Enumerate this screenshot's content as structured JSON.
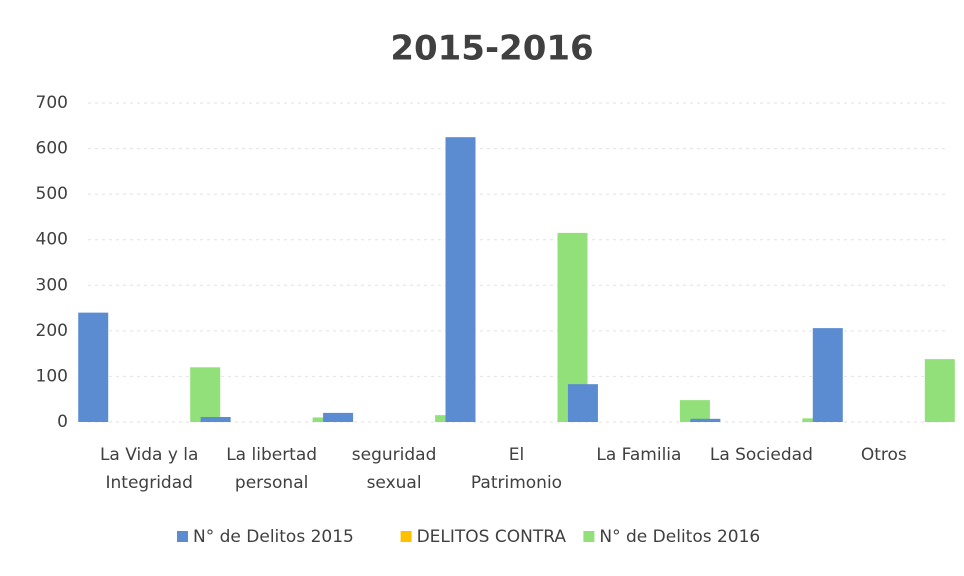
{
  "chart_data": {
    "type": "bar",
    "title": "2015-2016",
    "categories": [
      [
        "La Vida y la",
        "Integridad"
      ],
      [
        "La libertad",
        "personal"
      ],
      [
        "seguridad",
        "sexual"
      ],
      [
        "El",
        "Patrimonio"
      ],
      [
        "La Familia"
      ],
      [
        "La Sociedad"
      ],
      [
        "Otros"
      ]
    ],
    "series": [
      {
        "name": "N° de Delitos 2015",
        "color": "#5b8bd0",
        "values": [
          240,
          11,
          20,
          625,
          83,
          7,
          206
        ]
      },
      {
        "name": "DELITOS CONTRA",
        "color": "#ffc000",
        "values": [
          null,
          null,
          null,
          null,
          null,
          null,
          null
        ]
      },
      {
        "name": "N° de Delitos 2016",
        "color": "#92e07a",
        "values": [
          120,
          10,
          15,
          415,
          48,
          8,
          138
        ]
      }
    ],
    "ylim": [
      0,
      700
    ],
    "yticks": [
      0,
      100,
      200,
      300,
      400,
      500,
      600,
      700
    ],
    "grid": true,
    "legend": "bottom"
  }
}
